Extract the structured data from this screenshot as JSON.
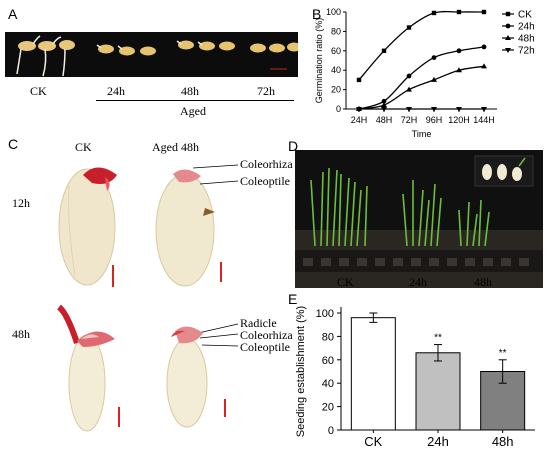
{
  "panels": {
    "a": {
      "letter": "A",
      "groups": [
        "CK",
        "24h",
        "48h",
        "72h"
      ],
      "aged_label": "Aged"
    },
    "b": {
      "letter": "B"
    },
    "c": {
      "letter": "C",
      "col_ck": "CK",
      "col_aged": "Aged 48h",
      "row_12h": "12h",
      "row_48h": "48h",
      "top_labels": [
        "Coleorhiza",
        "Coleoptile"
      ],
      "bottom_labels": [
        "Radicle",
        "Coleorhiza",
        "Coleoptile"
      ]
    },
    "d": {
      "letter": "D",
      "groups": [
        "CK",
        "24h",
        "48h"
      ]
    },
    "e": {
      "letter": "E"
    }
  },
  "chart_data": [
    {
      "type": "line",
      "panel": "B",
      "xlabel": "Time",
      "ylabel": "Germination ratio (%)",
      "categories": [
        "24H",
        "48H",
        "72H",
        "96H",
        "120H",
        "144H"
      ],
      "ylim": [
        0,
        100
      ],
      "yticks": [
        0,
        20,
        40,
        60,
        80,
        100
      ],
      "legend_position": "right",
      "series": [
        {
          "name": "CK",
          "marker": "square",
          "values": [
            30,
            60,
            84,
            99,
            100,
            100
          ]
        },
        {
          "name": "24h",
          "marker": "circle",
          "values": [
            0,
            8,
            34,
            53,
            60,
            64
          ]
        },
        {
          "name": "48h",
          "marker": "triangle-up",
          "values": [
            0,
            4,
            20,
            30,
            40,
            44
          ]
        },
        {
          "name": "72h",
          "marker": "triangle-down",
          "values": [
            0,
            0,
            0,
            0,
            0,
            0
          ]
        }
      ]
    },
    {
      "type": "bar",
      "panel": "E",
      "ylabel": "Seeding establishment (%)",
      "categories": [
        "CK",
        "24h",
        "48h"
      ],
      "values": [
        96,
        66,
        50
      ],
      "errors": [
        4,
        7,
        10
      ],
      "annotations": [
        "",
        "**",
        "**"
      ],
      "colors": [
        "#ffffff",
        "#c0c0c0",
        "#808080"
      ],
      "ylim": [
        0,
        100
      ],
      "yticks": [
        0,
        20,
        40,
        60,
        80,
        100
      ]
    }
  ]
}
